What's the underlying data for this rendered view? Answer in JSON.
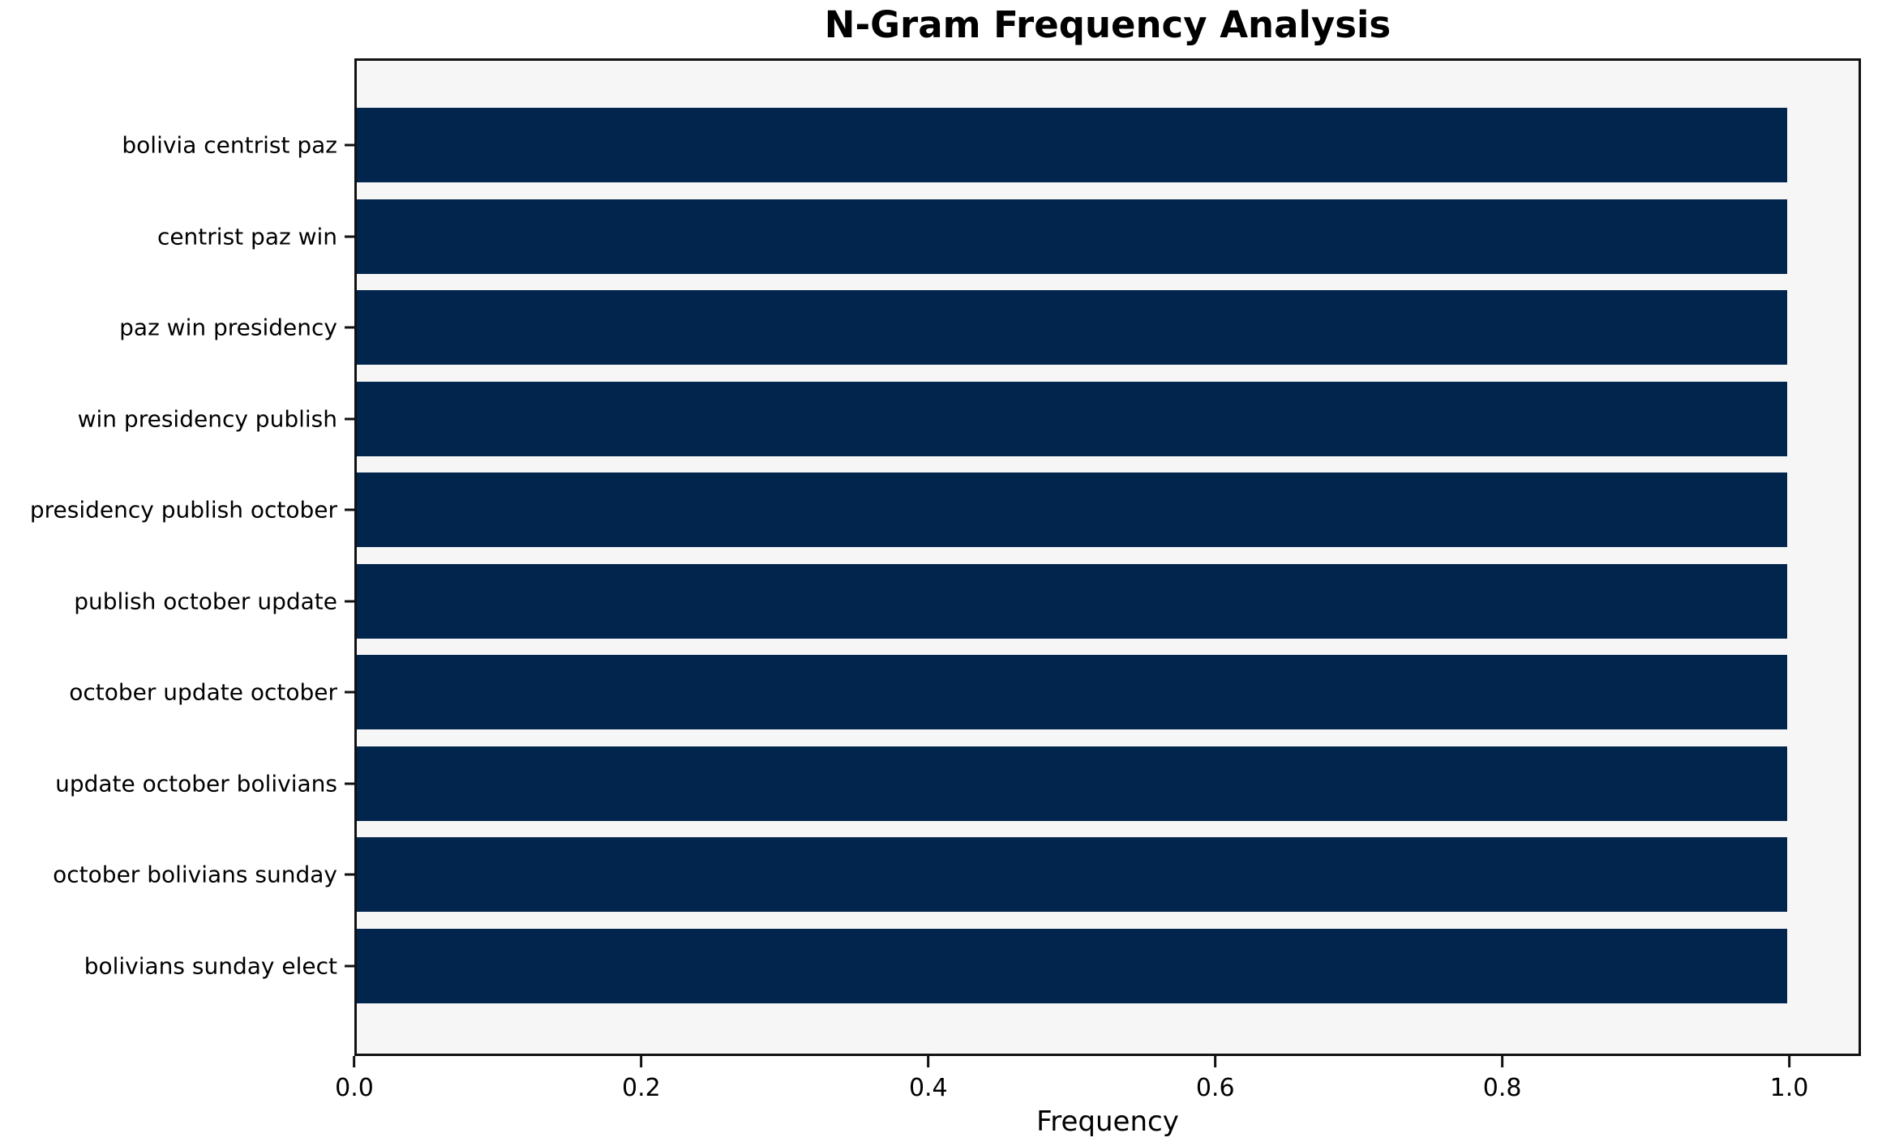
{
  "chart_data": {
    "type": "bar",
    "orientation": "horizontal",
    "title": "N-Gram Frequency Analysis",
    "xlabel": "Frequency",
    "ylabel": "",
    "categories": [
      "bolivia centrist paz",
      "centrist paz win",
      "paz win presidency",
      "win presidency publish",
      "presidency publish october",
      "publish october update",
      "october update october",
      "update october bolivians",
      "october bolivians sunday",
      "bolivians sunday elect"
    ],
    "values": [
      1.0,
      1.0,
      1.0,
      1.0,
      1.0,
      1.0,
      1.0,
      1.0,
      1.0,
      1.0
    ],
    "xlim": [
      0,
      1.05
    ],
    "x_ticks": [
      {
        "label": "0.0",
        "value": 0.0
      },
      {
        "label": "0.2",
        "value": 0.2
      },
      {
        "label": "0.4",
        "value": 0.4
      },
      {
        "label": "0.6",
        "value": 0.6
      },
      {
        "label": "0.8",
        "value": 0.8
      },
      {
        "label": "1.0",
        "value": 1.0
      }
    ],
    "grid": false,
    "legend": null,
    "colors": {
      "bar": "#02254d",
      "plot_bg": "#f6f6f7",
      "figure_bg": "#ffffff",
      "spine": "#111111",
      "text": "#000000"
    }
  }
}
